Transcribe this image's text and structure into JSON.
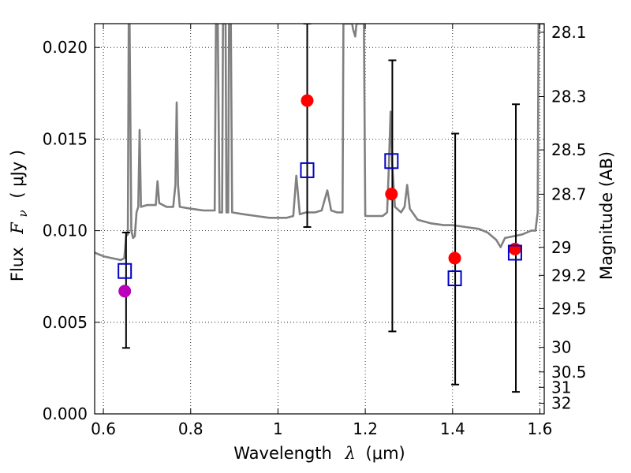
{
  "chart_data": {
    "type": "scatter",
    "xlabel_text": "Wavelength",
    "xlabel_symbol": "λ",
    "xlabel_unit": "(μm)",
    "ylabel_text": "Flux",
    "ylabel_symbol": "F",
    "ylabel_subscript": "ν",
    "ylabel_unit": "( μJy )",
    "y2label": "Magnitude (AB)",
    "xlim": [
      0.58,
      1.61
    ],
    "ylim": [
      0.0,
      0.0213
    ],
    "grid": true,
    "x_ticks": [
      0.6,
      0.8,
      1.0,
      1.2,
      1.4,
      1.6
    ],
    "x_tick_labels": [
      "0.6",
      "0.8",
      "1",
      "1.2",
      "1.4",
      "1.6"
    ],
    "y_ticks": [
      0.0,
      0.005,
      0.01,
      0.015,
      0.02
    ],
    "y_tick_labels": [
      "0.000",
      "0.005",
      "0.010",
      "0.015",
      "0.020"
    ],
    "y2_ticks": [
      {
        "label": "28.1",
        "flux": 0.02083
      },
      {
        "label": "28.3",
        "flux": 0.01732
      },
      {
        "label": "28.5",
        "flux": 0.01441
      },
      {
        "label": "28.7",
        "flux": 0.01199
      },
      {
        "label": "29",
        "flux": 0.00909
      },
      {
        "label": "29.2",
        "flux": 0.00756
      },
      {
        "label": "29.5",
        "flux": 0.00575
      },
      {
        "label": "30",
        "flux": 0.00363
      },
      {
        "label": "30.5",
        "flux": 0.00229
      },
      {
        "label": "31",
        "flux": 0.00145
      },
      {
        "label": "32",
        "flux": 0.00058
      }
    ],
    "series": [
      {
        "name": "model spectrum",
        "style": "line",
        "color": "#808080",
        "points": [
          [
            0.58,
            0.0088
          ],
          [
            0.6,
            0.0086
          ],
          [
            0.62,
            0.0085
          ],
          [
            0.64,
            0.0084
          ],
          [
            0.648,
            0.0085
          ],
          [
            0.652,
            0.0097
          ],
          [
            0.656,
            0.0098
          ],
          [
            0.658,
            0.0213
          ],
          [
            0.66,
            0.0213
          ],
          [
            0.664,
            0.01
          ],
          [
            0.668,
            0.0096
          ],
          [
            0.672,
            0.0097
          ],
          [
            0.676,
            0.011
          ],
          [
            0.68,
            0.0113
          ],
          [
            0.683,
            0.0155
          ],
          [
            0.686,
            0.0113
          ],
          [
            0.7,
            0.0114
          ],
          [
            0.72,
            0.0114
          ],
          [
            0.724,
            0.0127
          ],
          [
            0.728,
            0.0115
          ],
          [
            0.745,
            0.0113
          ],
          [
            0.76,
            0.0113
          ],
          [
            0.765,
            0.0125
          ],
          [
            0.768,
            0.017
          ],
          [
            0.771,
            0.0125
          ],
          [
            0.775,
            0.0113
          ],
          [
            0.8,
            0.0112
          ],
          [
            0.83,
            0.0111
          ],
          [
            0.855,
            0.0111
          ],
          [
            0.858,
            0.0213
          ],
          [
            0.862,
            0.0213
          ],
          [
            0.866,
            0.011
          ],
          [
            0.872,
            0.011
          ],
          [
            0.874,
            0.0213
          ],
          [
            0.88,
            0.0213
          ],
          [
            0.882,
            0.011
          ],
          [
            0.886,
            0.011
          ],
          [
            0.888,
            0.0213
          ],
          [
            0.892,
            0.0213
          ],
          [
            0.895,
            0.011
          ],
          [
            0.92,
            0.0109
          ],
          [
            0.95,
            0.0108
          ],
          [
            0.98,
            0.0107
          ],
          [
            1.0,
            0.0107
          ],
          [
            1.02,
            0.0107
          ],
          [
            1.035,
            0.0108
          ],
          [
            1.042,
            0.013
          ],
          [
            1.05,
            0.0109
          ],
          [
            1.065,
            0.011
          ],
          [
            1.085,
            0.011
          ],
          [
            1.1,
            0.0111
          ],
          [
            1.113,
            0.0122
          ],
          [
            1.122,
            0.0111
          ],
          [
            1.135,
            0.011
          ],
          [
            1.148,
            0.011
          ],
          [
            1.15,
            0.0213
          ],
          [
            1.17,
            0.0213
          ],
          [
            1.172,
            0.021
          ],
          [
            1.177,
            0.0206
          ],
          [
            1.18,
            0.0213
          ],
          [
            1.197,
            0.0213
          ],
          [
            1.2,
            0.0108
          ],
          [
            1.22,
            0.0108
          ],
          [
            1.24,
            0.0108
          ],
          [
            1.25,
            0.011
          ],
          [
            1.254,
            0.0135
          ],
          [
            1.258,
            0.0165
          ],
          [
            1.262,
            0.0135
          ],
          [
            1.268,
            0.0113
          ],
          [
            1.282,
            0.011
          ],
          [
            1.29,
            0.0113
          ],
          [
            1.296,
            0.0125
          ],
          [
            1.302,
            0.0112
          ],
          [
            1.32,
            0.0106
          ],
          [
            1.35,
            0.0104
          ],
          [
            1.38,
            0.0103
          ],
          [
            1.4,
            0.0103
          ],
          [
            1.43,
            0.0102
          ],
          [
            1.46,
            0.0101
          ],
          [
            1.48,
            0.0099
          ],
          [
            1.5,
            0.0095
          ],
          [
            1.51,
            0.0091
          ],
          [
            1.52,
            0.0096
          ],
          [
            1.54,
            0.0097
          ],
          [
            1.56,
            0.0098
          ],
          [
            1.58,
            0.01
          ],
          [
            1.59,
            0.01
          ],
          [
            1.595,
            0.011
          ],
          [
            1.597,
            0.0213
          ],
          [
            1.61,
            0.0213
          ]
        ]
      },
      {
        "name": "photometry (red)",
        "style": "marker",
        "marker": "circle",
        "color": "#ff0000",
        "points": [
          [
            1.067,
            0.0171
          ],
          [
            1.26,
            0.012
          ],
          [
            1.405,
            0.0085
          ],
          [
            1.543,
            0.009
          ]
        ]
      },
      {
        "name": "photometry (magenta)",
        "style": "marker",
        "marker": "circle",
        "color": "#bb00bb",
        "points": [
          [
            0.649,
            0.0067
          ]
        ]
      },
      {
        "name": "synthetic photometry",
        "style": "marker",
        "marker": "open-square",
        "color": "#0000cc",
        "points": [
          [
            0.649,
            0.0078
          ],
          [
            1.067,
            0.0133
          ],
          [
            1.26,
            0.0138
          ],
          [
            1.405,
            0.0074
          ],
          [
            1.543,
            0.0088
          ]
        ]
      },
      {
        "name": "error bars",
        "style": "errorbar",
        "color": "#000000",
        "bars": [
          {
            "x": 0.652,
            "low": 0.0036,
            "high": 0.0099
          },
          {
            "x": 1.067,
            "low": 0.0102,
            "high": 0.0213
          },
          {
            "x": 1.262,
            "low": 0.0045,
            "high": 0.0193
          },
          {
            "x": 1.406,
            "low": 0.0016,
            "high": 0.0153
          },
          {
            "x": 1.545,
            "low": 0.0012,
            "high": 0.0169
          }
        ]
      }
    ]
  }
}
